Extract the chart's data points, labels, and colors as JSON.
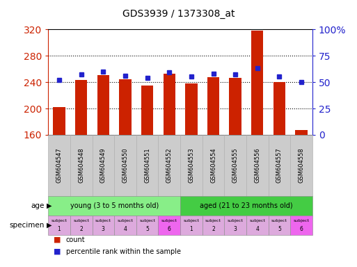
{
  "title": "GDS3939 / 1373308_at",
  "categories": [
    "GSM604547",
    "GSM604548",
    "GSM604549",
    "GSM604550",
    "GSM604551",
    "GSM604552",
    "GSM604553",
    "GSM604554",
    "GSM604555",
    "GSM604556",
    "GSM604557",
    "GSM604558"
  ],
  "count_values": [
    202,
    243,
    251,
    244,
    235,
    253,
    238,
    247,
    246,
    318,
    240,
    167
  ],
  "percentile_values": [
    52,
    57,
    60,
    56,
    54,
    59,
    55,
    58,
    57,
    63,
    55,
    50
  ],
  "ylim_left": [
    160,
    320
  ],
  "ylim_right": [
    0,
    100
  ],
  "yticks_left": [
    160,
    200,
    240,
    280,
    320
  ],
  "yticks_right": [
    0,
    25,
    50,
    75,
    100
  ],
  "ytick_right_labels": [
    "0",
    "25",
    "50",
    "75",
    "100%"
  ],
  "bar_color": "#cc2200",
  "dot_color": "#2222cc",
  "bar_width": 0.55,
  "age_groups": [
    {
      "label": "young (3 to 5 months old)",
      "start": 0,
      "end": 6,
      "color": "#88ee88"
    },
    {
      "label": "aged (21 to 23 months old)",
      "start": 6,
      "end": 12,
      "color": "#44cc44"
    }
  ],
  "specimen_colors": [
    "#ddaadd",
    "#ddaadd",
    "#ddaadd",
    "#ddaadd",
    "#ddaadd",
    "#ee66ee",
    "#ddaadd",
    "#ddaadd",
    "#ddaadd",
    "#ddaadd",
    "#ddaadd",
    "#ee66ee"
  ],
  "specimen_numbers": [
    "1",
    "2",
    "3",
    "4",
    "5",
    "6",
    "1",
    "2",
    "3",
    "4",
    "5",
    "6"
  ],
  "specimen_label": "subject",
  "left_axis_color": "#cc2200",
  "right_axis_color": "#2222cc",
  "bg_color": "#ffffff",
  "gray_color": "#cccccc",
  "gray_edge_color": "#aaaaaa"
}
